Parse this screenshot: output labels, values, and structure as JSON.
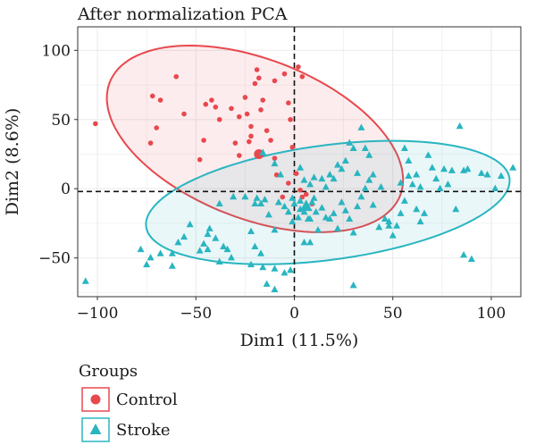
{
  "chart_data": {
    "type": "scatter",
    "title": "After normalization PCA",
    "xlabel": "Dim1 (11.5%)",
    "ylabel": "Dim2 (8.6%)",
    "xlim": [
      -110,
      115
    ],
    "ylim": [
      -78,
      117
    ],
    "xticks": [
      -100,
      -50,
      0,
      50,
      100
    ],
    "yticks": [
      -50,
      0,
      50,
      100
    ],
    "xtick_labels": [
      "−100",
      "−50",
      "0",
      "50",
      "100"
    ],
    "ytick_labels": [
      "−50",
      "0",
      "50",
      "100"
    ],
    "grid": true,
    "reference_lines": {
      "x": 0,
      "y": -2
    },
    "legend": {
      "title": "Groups",
      "placement": "bottom-left"
    },
    "colors": {
      "Control": "#e8484d",
      "Stroke": "#29b5c0"
    },
    "series": [
      {
        "name": "Control",
        "marker": "circle",
        "points": [
          [
            -101,
            47
          ],
          [
            -70,
            44
          ],
          [
            -68,
            64
          ],
          [
            -73,
            33
          ],
          [
            -60,
            81
          ],
          [
            -56,
            54
          ],
          [
            -48,
            21
          ],
          [
            -72,
            67
          ],
          [
            -45,
            61
          ],
          [
            -42,
            64
          ],
          [
            -40,
            59
          ],
          [
            -46,
            35
          ],
          [
            -38,
            50
          ],
          [
            -32,
            58
          ],
          [
            -30,
            33
          ],
          [
            -28,
            52
          ],
          [
            -25,
            66
          ],
          [
            -24,
            54
          ],
          [
            -22,
            45
          ],
          [
            -22,
            38
          ],
          [
            -20,
            76
          ],
          [
            -19,
            86
          ],
          [
            -18,
            80
          ],
          [
            -17,
            57
          ],
          [
            -16,
            64
          ],
          [
            -14,
            42
          ],
          [
            -12,
            35
          ],
          [
            -10,
            78
          ],
          [
            -5,
            83
          ],
          [
            -3,
            62
          ],
          [
            -2,
            50
          ],
          [
            -1,
            30
          ],
          [
            2,
            88
          ],
          [
            4,
            81
          ],
          [
            -23,
            34
          ],
          [
            -28,
            24
          ],
          [
            -17,
            25
          ],
          [
            -10,
            22
          ],
          [
            -9,
            10
          ],
          [
            1,
            11
          ],
          [
            3,
            -1
          ],
          [
            4,
            -6
          ],
          [
            6,
            -4
          ],
          [
            9,
            -11
          ],
          [
            -6,
            -6
          ],
          [
            -3,
            4
          ]
        ],
        "highlight": [
          -18,
          25
        ]
      },
      {
        "name": "Stroke",
        "marker": "triangle",
        "points": [
          [
            -106,
            -67
          ],
          [
            -78,
            -44
          ],
          [
            -75,
            -55
          ],
          [
            -73,
            -50
          ],
          [
            -68,
            -47
          ],
          [
            -62,
            -56
          ],
          [
            -62,
            -47
          ],
          [
            -59,
            -39
          ],
          [
            -56,
            -35
          ],
          [
            -48,
            -45
          ],
          [
            -46,
            -40
          ],
          [
            -44,
            -33
          ],
          [
            -44,
            -44
          ],
          [
            -43,
            -29
          ],
          [
            -40,
            -36
          ],
          [
            -38,
            -53
          ],
          [
            -36,
            -42
          ],
          [
            -34,
            -44
          ],
          [
            -32,
            -50
          ],
          [
            -22,
            -55
          ],
          [
            -22,
            -31
          ],
          [
            -20,
            -42
          ],
          [
            -17,
            -47
          ],
          [
            -16,
            -57
          ],
          [
            -10,
            -58
          ],
          [
            -14,
            -69
          ],
          [
            -5,
            -61
          ],
          [
            -2,
            -59
          ],
          [
            5,
            -39
          ],
          [
            8,
            -39
          ],
          [
            -53,
            -26
          ],
          [
            -38,
            -11
          ],
          [
            -31,
            -6
          ],
          [
            -25,
            -6
          ],
          [
            -20,
            -11
          ],
          [
            -19,
            -7
          ],
          [
            -17,
            -11
          ],
          [
            -15,
            -8
          ],
          [
            -13,
            -19
          ],
          [
            -10,
            -30
          ],
          [
            -8,
            -10
          ],
          [
            -5,
            -13
          ],
          [
            -3,
            -17
          ],
          [
            -1,
            -24
          ],
          [
            0,
            -11
          ],
          [
            2,
            -21
          ],
          [
            3,
            -15
          ],
          [
            5,
            -17
          ],
          [
            7,
            -22
          ],
          [
            8,
            -22
          ],
          [
            10,
            -7
          ],
          [
            11,
            -17
          ],
          [
            12,
            -30
          ],
          [
            14,
            -14
          ],
          [
            16,
            -21
          ],
          [
            18,
            -22
          ],
          [
            20,
            -18
          ],
          [
            22,
            -29
          ],
          [
            24,
            -10
          ],
          [
            26,
            -16
          ],
          [
            28,
            -22
          ],
          [
            30,
            -32
          ],
          [
            32,
            -13
          ],
          [
            34,
            -6
          ],
          [
            36,
            0
          ],
          [
            38,
            6
          ],
          [
            40,
            -12
          ],
          [
            43,
            -28
          ],
          [
            46,
            -22
          ],
          [
            48,
            -27
          ],
          [
            50,
            -34
          ],
          [
            52,
            -27
          ],
          [
            54,
            -18
          ],
          [
            56,
            -9
          ],
          [
            58,
            9
          ],
          [
            60,
            3
          ],
          [
            62,
            -15
          ],
          [
            64,
            -24
          ],
          [
            66,
            -18
          ],
          [
            70,
            15
          ],
          [
            72,
            7
          ],
          [
            74,
            0
          ],
          [
            76,
            14
          ],
          [
            78,
            3
          ],
          [
            80,
            13
          ],
          [
            82,
            -15
          ],
          [
            84,
            45
          ],
          [
            86,
            13
          ],
          [
            88,
            14
          ],
          [
            90,
            -51
          ],
          [
            95,
            11
          ],
          [
            98,
            10
          ],
          [
            102,
            0
          ],
          [
            105,
            9
          ],
          [
            111,
            15
          ],
          [
            -16,
            26
          ],
          [
            -10,
            18
          ],
          [
            -7,
            10
          ],
          [
            3,
            15
          ],
          [
            5,
            6
          ],
          [
            8,
            3
          ],
          [
            10,
            8
          ],
          [
            14,
            7
          ],
          [
            16,
            1
          ],
          [
            18,
            10
          ],
          [
            20,
            7
          ],
          [
            22,
            17
          ],
          [
            24,
            14
          ],
          [
            26,
            20
          ],
          [
            28,
            33
          ],
          [
            30,
            29
          ],
          [
            32,
            11
          ],
          [
            34,
            44
          ],
          [
            36,
            29
          ],
          [
            38,
            24
          ],
          [
            48,
            -24
          ],
          [
            56,
            29
          ],
          [
            58,
            20
          ],
          [
            62,
            10
          ],
          [
            64,
            1
          ],
          [
            68,
            24
          ],
          [
            30,
            -70
          ],
          [
            -10,
            -73
          ],
          [
            86,
            -48
          ],
          [
            54,
            4
          ],
          [
            44,
            1
          ],
          [
            40,
            10
          ],
          [
            9,
            -10
          ],
          [
            3,
            -9
          ],
          [
            -1,
            -7
          ]
        ],
        "highlight": [
          6,
          -13
        ]
      }
    ],
    "ellipses": [
      {
        "group": "Control",
        "center": [
          -20,
          36
        ],
        "semi_axes": [
          86,
          53
        ],
        "angle_deg": -38
      },
      {
        "group": "Stroke",
        "center": [
          17,
          -10
        ],
        "semi_axes": [
          94,
          41
        ],
        "angle_deg": 12
      }
    ]
  }
}
